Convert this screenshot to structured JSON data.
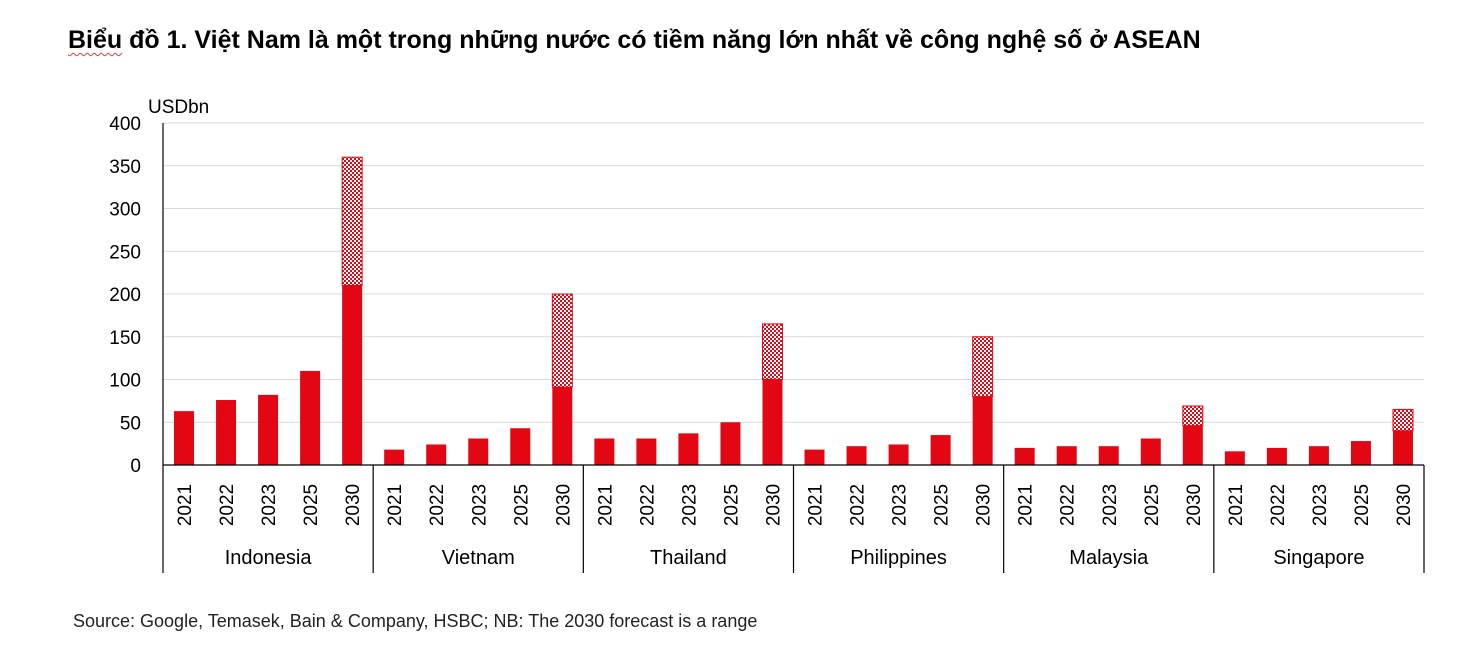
{
  "title_first_word": "Biểu",
  "title_rest": " đồ 1. Việt Nam là một trong những nước có tiềm năng lớn nhất về công nghệ số ở ASEAN",
  "source": "Source: Google, Temasek, Bain & Company, HSBC; NB: The 2030 forecast is a range",
  "colors": {
    "bar": "#e30613",
    "grid": "#d9d9d9",
    "axis": "#000000",
    "pattern_light": "#ffffff"
  },
  "chart_data": {
    "type": "bar",
    "stacked": true,
    "unit_label": "USDbn",
    "ylim": [
      0,
      400
    ],
    "yticks": [
      0,
      50,
      100,
      150,
      200,
      250,
      300,
      350,
      400
    ],
    "grid": true,
    "legend": "none",
    "groups": [
      {
        "name": "Indonesia",
        "years": [
          "2021",
          "2022",
          "2023",
          "2025",
          "2030"
        ],
        "values": [
          63,
          76,
          82,
          110,
          210
        ],
        "forecast_range": [
          0,
          0,
          0,
          0,
          150
        ]
      },
      {
        "name": "Vietnam",
        "years": [
          "2021",
          "2022",
          "2023",
          "2025",
          "2030"
        ],
        "values": [
          18,
          24,
          31,
          43,
          91
        ],
        "forecast_range": [
          0,
          0,
          0,
          0,
          109
        ]
      },
      {
        "name": "Thailand",
        "years": [
          "2021",
          "2022",
          "2023",
          "2025",
          "2030"
        ],
        "values": [
          31,
          31,
          37,
          50,
          100
        ],
        "forecast_range": [
          0,
          0,
          0,
          0,
          65
        ]
      },
      {
        "name": "Philippines",
        "years": [
          "2021",
          "2022",
          "2023",
          "2025",
          "2030"
        ],
        "values": [
          18,
          22,
          24,
          35,
          80
        ],
        "forecast_range": [
          0,
          0,
          0,
          0,
          70
        ]
      },
      {
        "name": "Malaysia",
        "years": [
          "2021",
          "2022",
          "2023",
          "2025",
          "2030"
        ],
        "values": [
          20,
          22,
          22,
          31,
          46
        ],
        "forecast_range": [
          0,
          0,
          0,
          0,
          23
        ]
      },
      {
        "name": "Singapore",
        "years": [
          "2021",
          "2022",
          "2023",
          "2025",
          "2030"
        ],
        "values": [
          16,
          20,
          22,
          28,
          40
        ],
        "forecast_range": [
          0,
          0,
          0,
          0,
          25
        ]
      }
    ]
  }
}
